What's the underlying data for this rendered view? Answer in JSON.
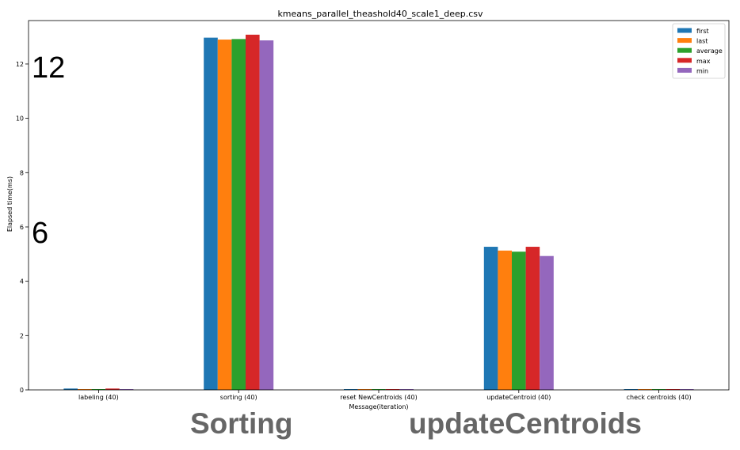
{
  "chart_data": {
    "type": "bar",
    "title": "kmeans_parallel_theashold40_scale1_deep.csv",
    "xlabel": "Message(iteration)",
    "ylabel": "Elapsed time(ms)",
    "ylim": [
      0,
      13.6
    ],
    "yticks": [
      "0",
      "2",
      "4",
      "6",
      "8",
      "10",
      "12"
    ],
    "categories": [
      "labeling (40)",
      "sorting (40)",
      "reset NewCentroids (40)",
      "updateCentroid (40)",
      "check centroids (40)"
    ],
    "series": [
      {
        "name": "first",
        "color": "#1f77b4",
        "values": [
          0.05,
          12.97,
          0.01,
          5.27,
          0.01
        ]
      },
      {
        "name": "last",
        "color": "#ff7f0e",
        "values": [
          0.01,
          12.9,
          0.01,
          5.13,
          0.01
        ]
      },
      {
        "name": "average",
        "color": "#2ca02c",
        "values": [
          0.01,
          12.92,
          0.01,
          5.09,
          0.01
        ]
      },
      {
        "name": "max",
        "color": "#d62728",
        "values": [
          0.05,
          13.08,
          0.01,
          5.27,
          0.01
        ]
      },
      {
        "name": "min",
        "color": "#9467bd",
        "values": [
          0.01,
          12.87,
          0.01,
          4.93,
          0.01
        ]
      }
    ],
    "grid": false,
    "legend_position": "top-right"
  },
  "overlays": {
    "label_12": "12",
    "label_6": "6",
    "label_sorting": "Sorting",
    "label_update": "updateCentroids"
  }
}
